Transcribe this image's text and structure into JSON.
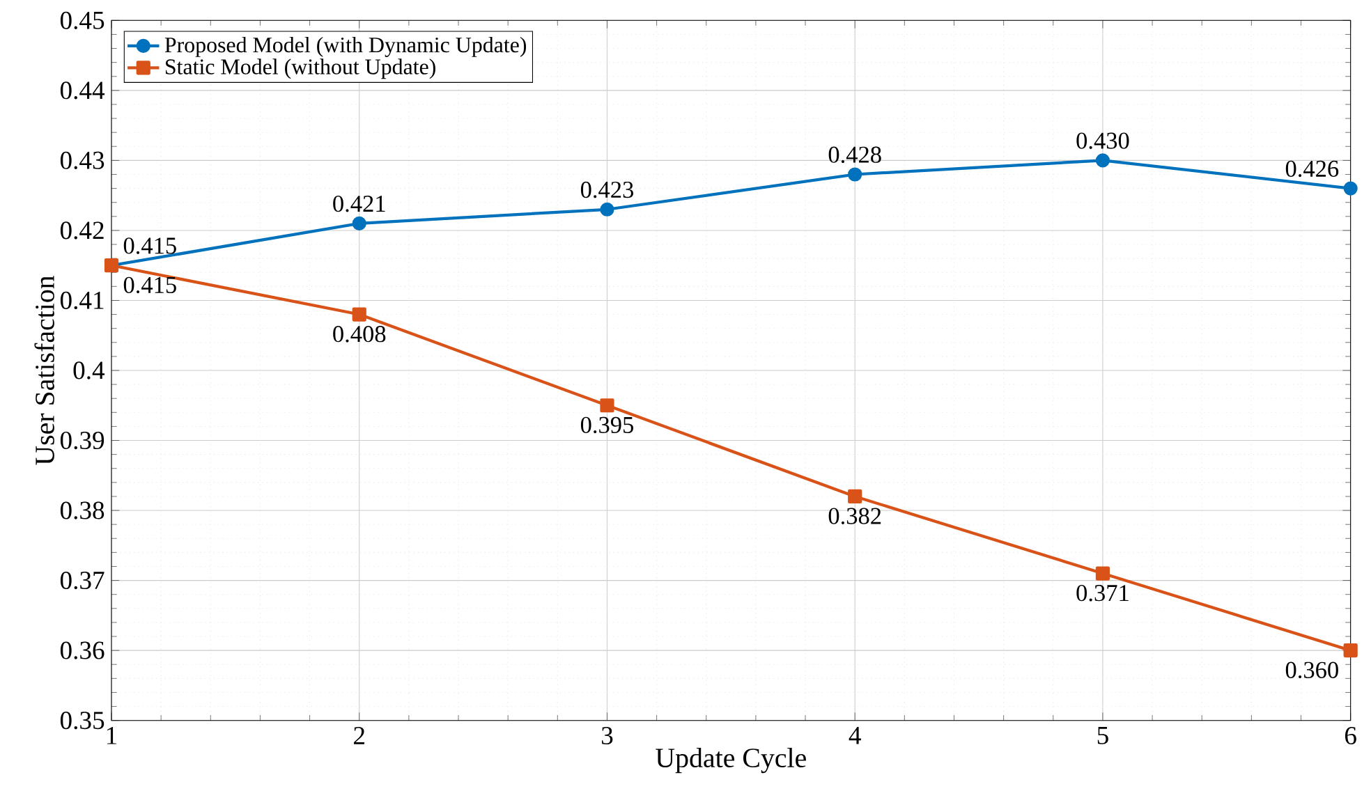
{
  "chart_data": {
    "type": "line",
    "xlabel": "Update Cycle",
    "ylabel": "User Satisfaction",
    "x": [
      1,
      2,
      3,
      4,
      5,
      6
    ],
    "series": [
      {
        "name": "Proposed Model (with Dynamic Update)",
        "color": "#0072bd",
        "marker": "circle",
        "values": [
          0.415,
          0.421,
          0.423,
          0.428,
          0.43,
          0.426
        ],
        "value_labels": [
          "0.415",
          "0.421",
          "0.423",
          "0.428",
          "0.430",
          "0.426"
        ]
      },
      {
        "name": "Static Model (without Update)",
        "color": "#d95319",
        "marker": "square",
        "values": [
          0.415,
          0.408,
          0.395,
          0.382,
          0.371,
          0.36
        ],
        "value_labels": [
          "0.415",
          "0.408",
          "0.395",
          "0.382",
          "0.371",
          "0.360"
        ]
      }
    ],
    "xlim": [
      1,
      6
    ],
    "xticks": [
      1,
      2,
      3,
      4,
      5,
      6
    ],
    "ylim": [
      0.35,
      0.45
    ],
    "yticks": [
      0.35,
      0.36,
      0.37,
      0.38,
      0.39,
      0.4,
      0.41,
      0.42,
      0.43,
      0.44,
      0.45
    ],
    "grid": true,
    "legend": "top left",
    "line_style": "solid"
  }
}
